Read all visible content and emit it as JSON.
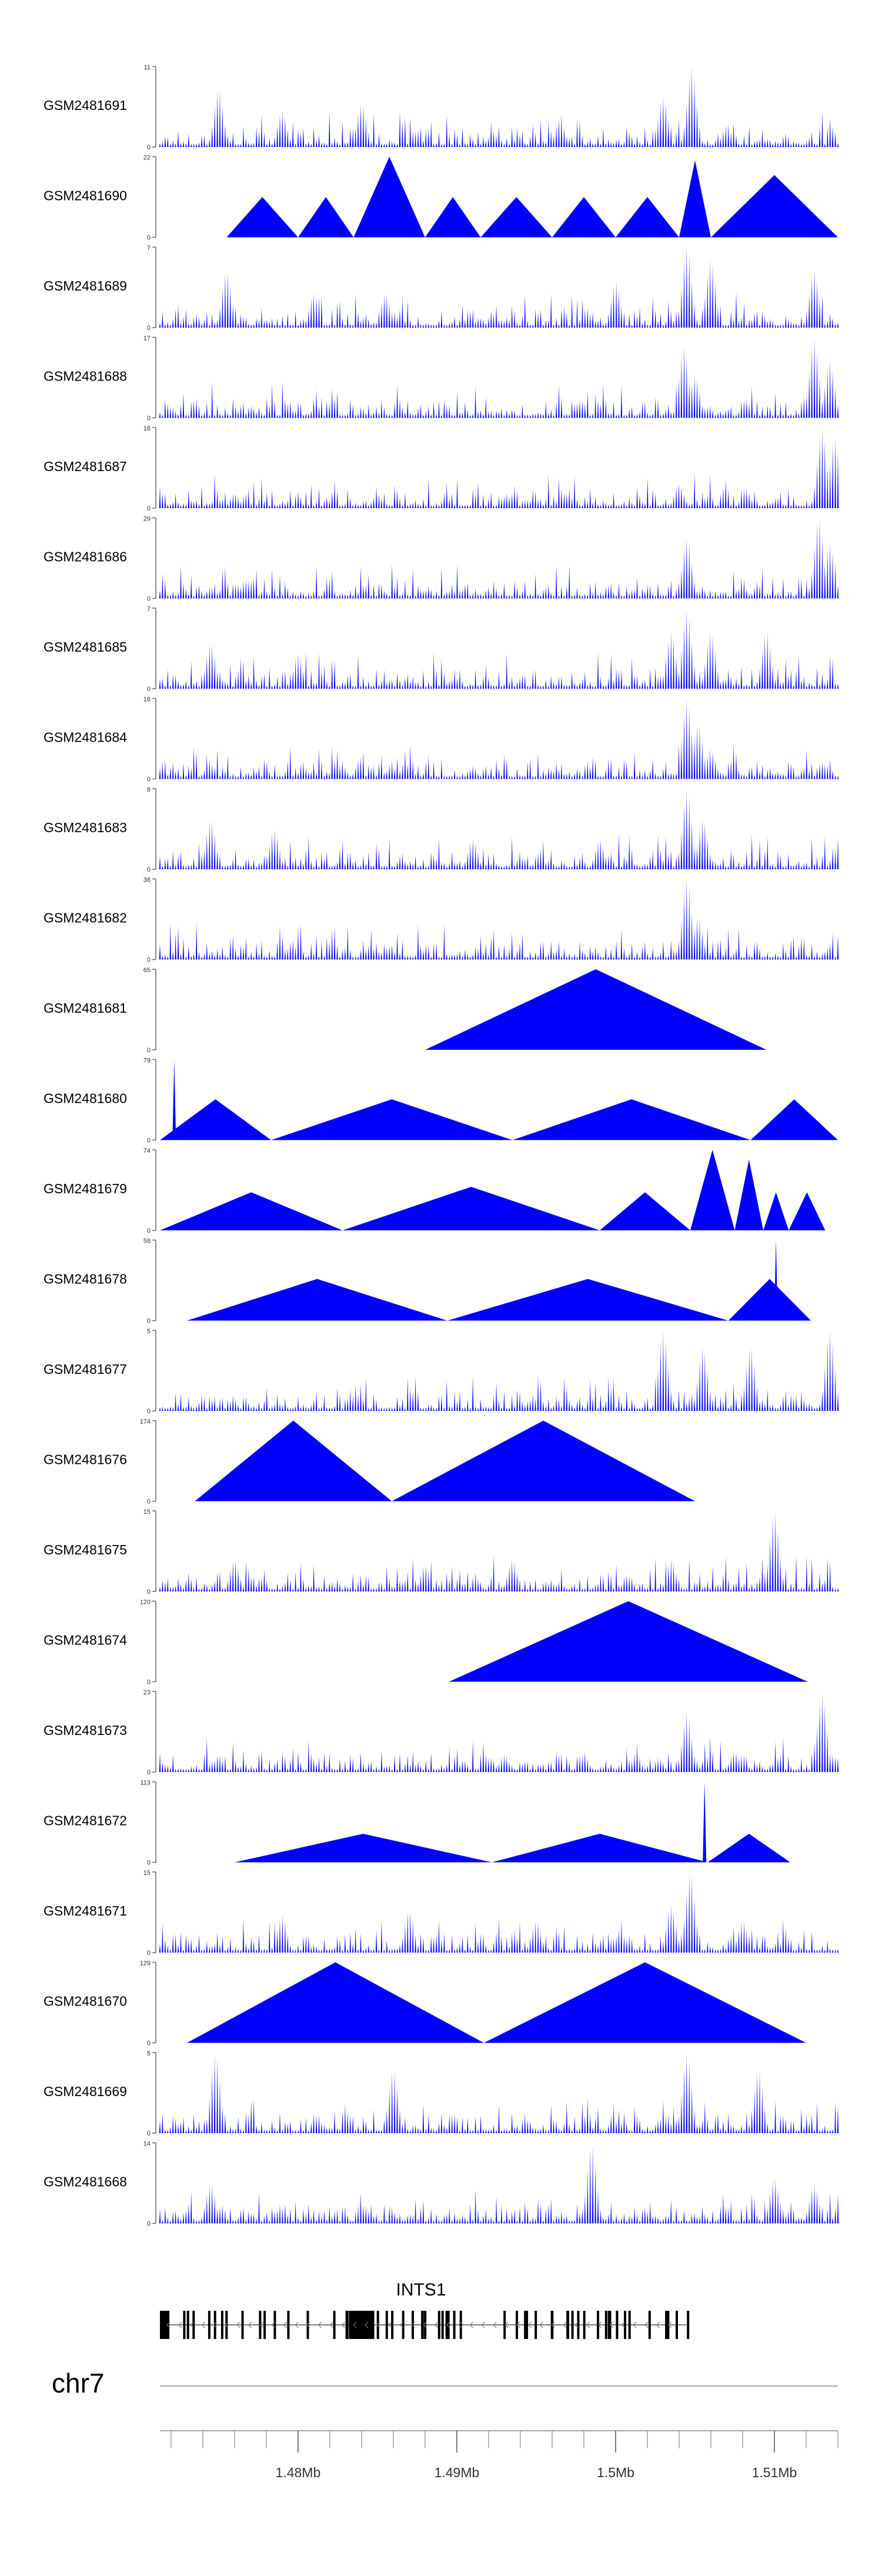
{
  "chart_data": {
    "type": "area",
    "title": "",
    "x_unit": "Mb",
    "x_range": [
      1.4713,
      1.514
    ],
    "series_color": "#0000ff",
    "tracks": [
      {
        "name": "GSM2481691",
        "ymax": "11",
        "ymin": "0",
        "ylim": [
          0,
          11
        ],
        "profile": "spiky",
        "peaks": [
          [
            1.475,
            8
          ],
          [
            1.479,
            5
          ],
          [
            1.484,
            6
          ],
          [
            1.4965,
            4
          ],
          [
            1.503,
            7
          ],
          [
            1.5048,
            11
          ],
          [
            1.507,
            3
          ]
        ]
      },
      {
        "name": "GSM2481690",
        "ymax": "22",
        "ymin": "0",
        "ylim": [
          0,
          22
        ],
        "profile": "triangles",
        "segments": [
          [
            1.4755,
            1.48,
            11
          ],
          [
            1.48,
            1.4835,
            11
          ],
          [
            1.4835,
            1.488,
            22
          ],
          [
            1.488,
            1.4915,
            11
          ],
          [
            1.4915,
            1.496,
            11
          ],
          [
            1.496,
            1.5,
            11
          ],
          [
            1.5,
            1.504,
            11
          ],
          [
            1.504,
            1.506,
            21
          ],
          [
            1.506,
            1.514,
            17
          ]
        ]
      },
      {
        "name": "GSM2481689",
        "ymax": "7",
        "ymin": "0",
        "ylim": [
          0,
          7
        ],
        "profile": "spiky",
        "peaks": [
          [
            1.4755,
            5
          ],
          [
            1.481,
            3
          ],
          [
            1.4855,
            3
          ],
          [
            1.5,
            4
          ],
          [
            1.5045,
            7
          ],
          [
            1.506,
            6
          ],
          [
            1.5125,
            5
          ]
        ]
      },
      {
        "name": "GSM2481688",
        "ymax": "17",
        "ymin": "0",
        "ylim": [
          0,
          17
        ],
        "profile": "spiky",
        "peaks": [
          [
            1.5043,
            15
          ],
          [
            1.505,
            9
          ],
          [
            1.5082,
            4
          ],
          [
            1.5125,
            17
          ],
          [
            1.5135,
            12
          ]
        ]
      },
      {
        "name": "GSM2481687",
        "ymax": "16",
        "ymin": "0",
        "ylim": [
          0,
          16
        ],
        "profile": "spiky",
        "peaks": [
          [
            1.476,
            3
          ],
          [
            1.485,
            3
          ],
          [
            1.497,
            3
          ],
          [
            1.504,
            5
          ],
          [
            1.5082,
            4
          ],
          [
            1.513,
            16
          ],
          [
            1.5138,
            14
          ]
        ]
      },
      {
        "name": "GSM2481686",
        "ymax": "29",
        "ymin": "0",
        "ylim": [
          0,
          29
        ],
        "profile": "spiky",
        "peaks": [
          [
            1.4745,
            4
          ],
          [
            1.488,
            3
          ],
          [
            1.5045,
            22
          ],
          [
            1.508,
            5
          ],
          [
            1.5128,
            29
          ],
          [
            1.5135,
            20
          ]
        ]
      },
      {
        "name": "GSM2481685",
        "ymax": "7",
        "ymin": "0",
        "ylim": [
          0,
          7
        ],
        "profile": "spiky",
        "peaks": [
          [
            1.4745,
            4
          ],
          [
            1.48,
            3
          ],
          [
            1.5035,
            5
          ],
          [
            1.5045,
            7
          ],
          [
            1.506,
            5
          ],
          [
            1.5095,
            5
          ]
        ]
      },
      {
        "name": "GSM2481684",
        "ymax": "16",
        "ymin": "0",
        "ylim": [
          0,
          16
        ],
        "profile": "spiky",
        "peaks": [
          [
            1.4745,
            3
          ],
          [
            1.5045,
            16
          ],
          [
            1.5052,
            11
          ],
          [
            1.506,
            6
          ]
        ]
      },
      {
        "name": "GSM2481683",
        "ymax": "8",
        "ymin": "0",
        "ylim": [
          0,
          8
        ],
        "profile": "spiky",
        "peaks": [
          [
            1.4745,
            5
          ],
          [
            1.4785,
            4
          ],
          [
            1.491,
            3
          ],
          [
            1.499,
            3
          ],
          [
            1.5045,
            8
          ],
          [
            1.5055,
            5
          ]
        ]
      },
      {
        "name": "GSM2481682",
        "ymax": "38",
        "ymin": "0",
        "ylim": [
          0,
          38
        ],
        "profile": "spiky",
        "peaks": [
          [
            1.476,
            3
          ],
          [
            1.5045,
            38
          ],
          [
            1.5052,
            20
          ]
        ]
      },
      {
        "name": "GSM2481681",
        "ymax": "65",
        "ymin": "0",
        "ylim": [
          0,
          65
        ],
        "profile": "triangles",
        "segments": [
          [
            1.488,
            1.5095,
            65
          ]
        ]
      },
      {
        "name": "GSM2481680",
        "ymax": "79",
        "ymin": "0",
        "ylim": [
          0,
          79
        ],
        "profile": "triangles",
        "segments": [
          [
            1.4713,
            1.4783,
            40
          ],
          [
            1.4783,
            1.4935,
            40
          ],
          [
            1.4935,
            1.5085,
            40
          ],
          [
            1.5085,
            1.514,
            40
          ]
        ],
        "spikes": [
          [
            1.4722,
            79
          ]
        ]
      },
      {
        "name": "GSM2481679",
        "ymax": "74",
        "ymin": "0",
        "ylim": [
          0,
          74
        ],
        "profile": "triangles",
        "segments": [
          [
            1.4713,
            1.4828,
            35
          ],
          [
            1.4828,
            1.499,
            40
          ],
          [
            1.499,
            1.5047,
            35
          ],
          [
            1.5047,
            1.5075,
            74
          ],
          [
            1.5075,
            1.5093,
            65
          ],
          [
            1.5093,
            1.5109,
            35
          ],
          [
            1.5109,
            1.5132,
            35
          ]
        ]
      },
      {
        "name": "GSM2481678",
        "ymax": "58",
        "ymin": "0",
        "ylim": [
          0,
          58
        ],
        "profile": "triangles",
        "segments": [
          [
            1.473,
            1.4894,
            30
          ],
          [
            1.4894,
            1.5071,
            30
          ],
          [
            1.5071,
            1.5123,
            30
          ]
        ],
        "spikes": [
          [
            1.5101,
            58
          ]
        ]
      },
      {
        "name": "GSM2481677",
        "ymax": "5",
        "ymin": "0",
        "ylim": [
          0,
          5
        ],
        "profile": "spiky",
        "peaks": [
          [
            1.503,
            5
          ],
          [
            1.5055,
            4
          ],
          [
            1.5085,
            4
          ],
          [
            1.5135,
            5
          ]
        ]
      },
      {
        "name": "GSM2481676",
        "ymax": "174",
        "ymin": "0",
        "ylim": [
          0,
          174
        ],
        "profile": "triangles",
        "segments": [
          [
            1.4735,
            1.4859,
            174
          ],
          [
            1.4859,
            1.505,
            174
          ]
        ]
      },
      {
        "name": "GSM2481675",
        "ymax": "15",
        "ymin": "0",
        "ylim": [
          0,
          15
        ],
        "profile": "spiky",
        "peaks": [
          [
            1.476,
            6
          ],
          [
            1.488,
            5
          ],
          [
            1.4935,
            6
          ],
          [
            1.5035,
            6
          ],
          [
            1.51,
            15
          ]
        ]
      },
      {
        "name": "GSM2481674",
        "ymax": "120",
        "ymin": "0",
        "ylim": [
          0,
          120
        ],
        "profile": "triangles",
        "segments": [
          [
            1.4895,
            1.5121,
            120
          ]
        ]
      },
      {
        "name": "GSM2481673",
        "ymax": "23",
        "ymin": "0",
        "ylim": [
          0,
          23
        ],
        "profile": "spiky",
        "peaks": [
          [
            1.475,
            5
          ],
          [
            1.493,
            5
          ],
          [
            1.5045,
            17
          ],
          [
            1.5075,
            6
          ],
          [
            1.513,
            23
          ]
        ]
      },
      {
        "name": "GSM2481672",
        "ymax": "113",
        "ymin": "0",
        "ylim": [
          0,
          113
        ],
        "profile": "triangles",
        "segments": [
          [
            1.476,
            1.4922,
            40
          ],
          [
            1.4922,
            1.5058,
            40
          ],
          [
            1.5058,
            1.511,
            40
          ]
        ],
        "spikes": [
          [
            1.5056,
            113
          ]
        ]
      },
      {
        "name": "GSM2481671",
        "ymax": "15",
        "ymin": "0",
        "ylim": [
          0,
          15
        ],
        "profile": "spiky",
        "peaks": [
          [
            1.479,
            7
          ],
          [
            1.487,
            8
          ],
          [
            1.495,
            6
          ],
          [
            1.5035,
            9
          ],
          [
            1.5047,
            15
          ],
          [
            1.508,
            6
          ]
        ]
      },
      {
        "name": "GSM2481670",
        "ymax": "129",
        "ymin": "0",
        "ylim": [
          0,
          129
        ],
        "profile": "triangles",
        "segments": [
          [
            1.473,
            1.4917,
            129
          ],
          [
            1.4917,
            1.512,
            129
          ]
        ]
      },
      {
        "name": "GSM2481669",
        "ymax": "5",
        "ymin": "0",
        "ylim": [
          0,
          5
        ],
        "profile": "spiky",
        "peaks": [
          [
            1.4748,
            5
          ],
          [
            1.486,
            4
          ],
          [
            1.5045,
            5
          ],
          [
            1.509,
            4
          ]
        ]
      },
      {
        "name": "GSM2481668",
        "ymax": "14",
        "ymin": "0",
        "ylim": [
          0,
          14
        ],
        "profile": "spiky",
        "peaks": [
          [
            1.4745,
            7
          ],
          [
            1.4985,
            14
          ],
          [
            1.51,
            8
          ],
          [
            1.5125,
            7
          ]
        ]
      }
    ],
    "gene": {
      "name": "INTS1",
      "strand": "-",
      "start": 1.4713,
      "end": 1.5045,
      "thick_exons": [
        [
          1.4832,
          1.4848
        ],
        [
          1.4713,
          1.4718
        ]
      ]
    },
    "axis": {
      "chromosome": "chr7",
      "ticks": [
        {
          "value": 1.48,
          "label": "1.48Mb"
        },
        {
          "value": 1.49,
          "label": "1.49Mb"
        },
        {
          "value": 1.5,
          "label": "1.5Mb"
        },
        {
          "value": 1.51,
          "label": "1.51Mb"
        }
      ],
      "minor_step": 0.002
    }
  }
}
